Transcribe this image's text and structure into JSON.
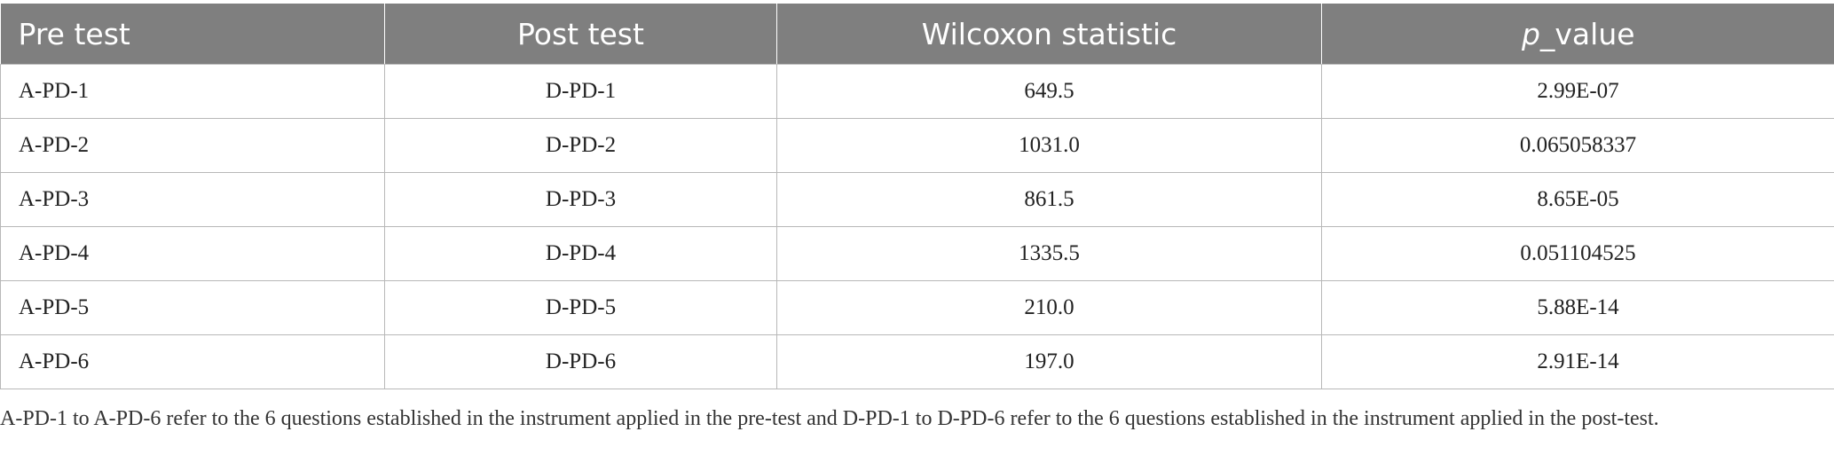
{
  "table": {
    "headers": {
      "pre_test": "Pre test",
      "post_test": "Post test",
      "wilcoxon": "Wilcoxon statistic",
      "p_value_italic": "p",
      "p_value_rest": "_value"
    },
    "rows": [
      {
        "pre": "A-PD-1",
        "post": "D-PD-1",
        "stat": "649.5",
        "p": "2.99E-07"
      },
      {
        "pre": "A-PD-2",
        "post": "D-PD-2",
        "stat": "1031.0",
        "p": "0.065058337"
      },
      {
        "pre": "A-PD-3",
        "post": "D-PD-3",
        "stat": "861.5",
        "p": "8.65E-05"
      },
      {
        "pre": "A-PD-4",
        "post": "D-PD-4",
        "stat": "1335.5",
        "p": "0.051104525"
      },
      {
        "pre": "A-PD-5",
        "post": "D-PD-5",
        "stat": "210.0",
        "p": "5.88E-14"
      },
      {
        "pre": "A-PD-6",
        "post": "D-PD-6",
        "stat": "197.0",
        "p": "2.91E-14"
      }
    ]
  },
  "footnote": "A-PD-1 to A-PD-6 refer to the 6 questions established in the instrument applied in the pre-test and D-PD-1 to D-PD-6 refer to the 6 questions established in the instrument applied in the post-test."
}
